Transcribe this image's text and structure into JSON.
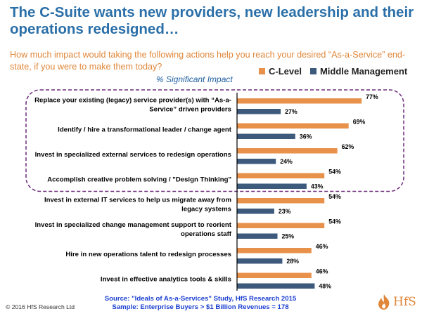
{
  "title": "The C-Suite wants new providers, new leadership and their operations redesigned…",
  "subtitle": "How much impact would taking the following actions help you reach your desired “As-a-Service” end-state, if you were to make them today?",
  "metric_label": "% Significant Impact",
  "source_line1": "Source: \"Ideals of As-a-Services\" Study, HfS Research 2015",
  "source_line2": "Sample: Enterprise Buyers > $1 Billion Revenues = 178",
  "copyright": "© 2016 HfS Research Ltd",
  "logo_text": "HfS",
  "colors": {
    "c_level": "#e8914a",
    "middle_management": "#3d5a7d",
    "title": "#2a6fa8",
    "subtitle": "#e0873a",
    "highlight_border": "#6b2c7a"
  },
  "chart_data": {
    "type": "bar",
    "orientation": "horizontal",
    "categories": [
      [
        "Replace your existing (legacy) service provider(s) with “As-a-",
        "Service” driven providers"
      ],
      [
        "Identify / hire a transformational leader / change agent"
      ],
      [
        "Invest in specialized external services to redesign operations"
      ],
      [
        "Accomplish creative problem solving / \"Design Thinking\""
      ],
      [
        "Invest in external IT services to help us migrate away from",
        "legacy systems"
      ],
      [
        "Invest in specialized change management support to reorient",
        "operations staff"
      ],
      [
        "Hire in new operations talent to redesign processes"
      ],
      [
        "Invest in effective analytics tools & skills"
      ]
    ],
    "series": [
      {
        "name": "C-Level",
        "values": [
          77,
          69,
          62,
          54,
          54,
          54,
          46,
          46
        ],
        "labels": [
          "77%",
          "69%",
          "62%",
          "54%",
          "54%",
          "54%",
          "46%",
          "46%"
        ]
      },
      {
        "name": "Middle Management",
        "values": [
          27,
          36,
          24,
          43,
          23,
          25,
          28,
          48
        ],
        "labels": [
          "27%",
          "36%",
          "24%",
          "43%",
          "23%",
          "25%",
          "28%",
          "48%"
        ]
      }
    ],
    "xlim": [
      0,
      100
    ],
    "highlighted_categories": [
      0,
      1,
      2,
      3
    ],
    "legend": "top-right",
    "grid": false
  }
}
